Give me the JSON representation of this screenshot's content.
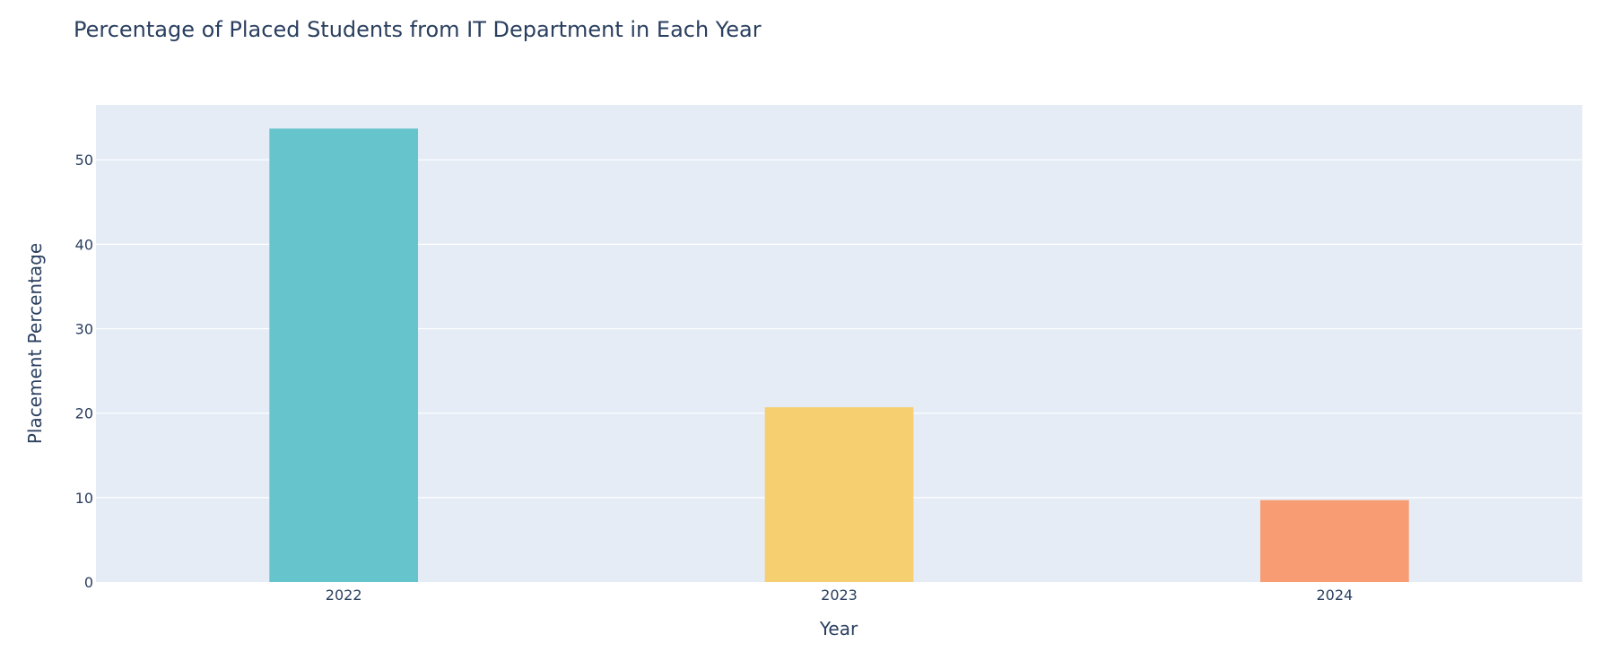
{
  "chart_data": {
    "type": "bar",
    "title": "Percentage of Placed Students from IT Department in Each Year",
    "xlabel": "Year",
    "ylabel": "Placement Percentage",
    "categories": [
      "2022",
      "2023",
      "2024"
    ],
    "values": [
      53.7,
      20.7,
      9.7
    ],
    "colors": [
      "#66c5cc",
      "#f6cf71",
      "#f89c74"
    ],
    "ylim": [
      0,
      56.5
    ],
    "yticks": [
      0,
      10,
      20,
      30,
      40,
      50
    ],
    "grid": true,
    "legend": "none",
    "plot_bg": "#e5ecf6"
  }
}
